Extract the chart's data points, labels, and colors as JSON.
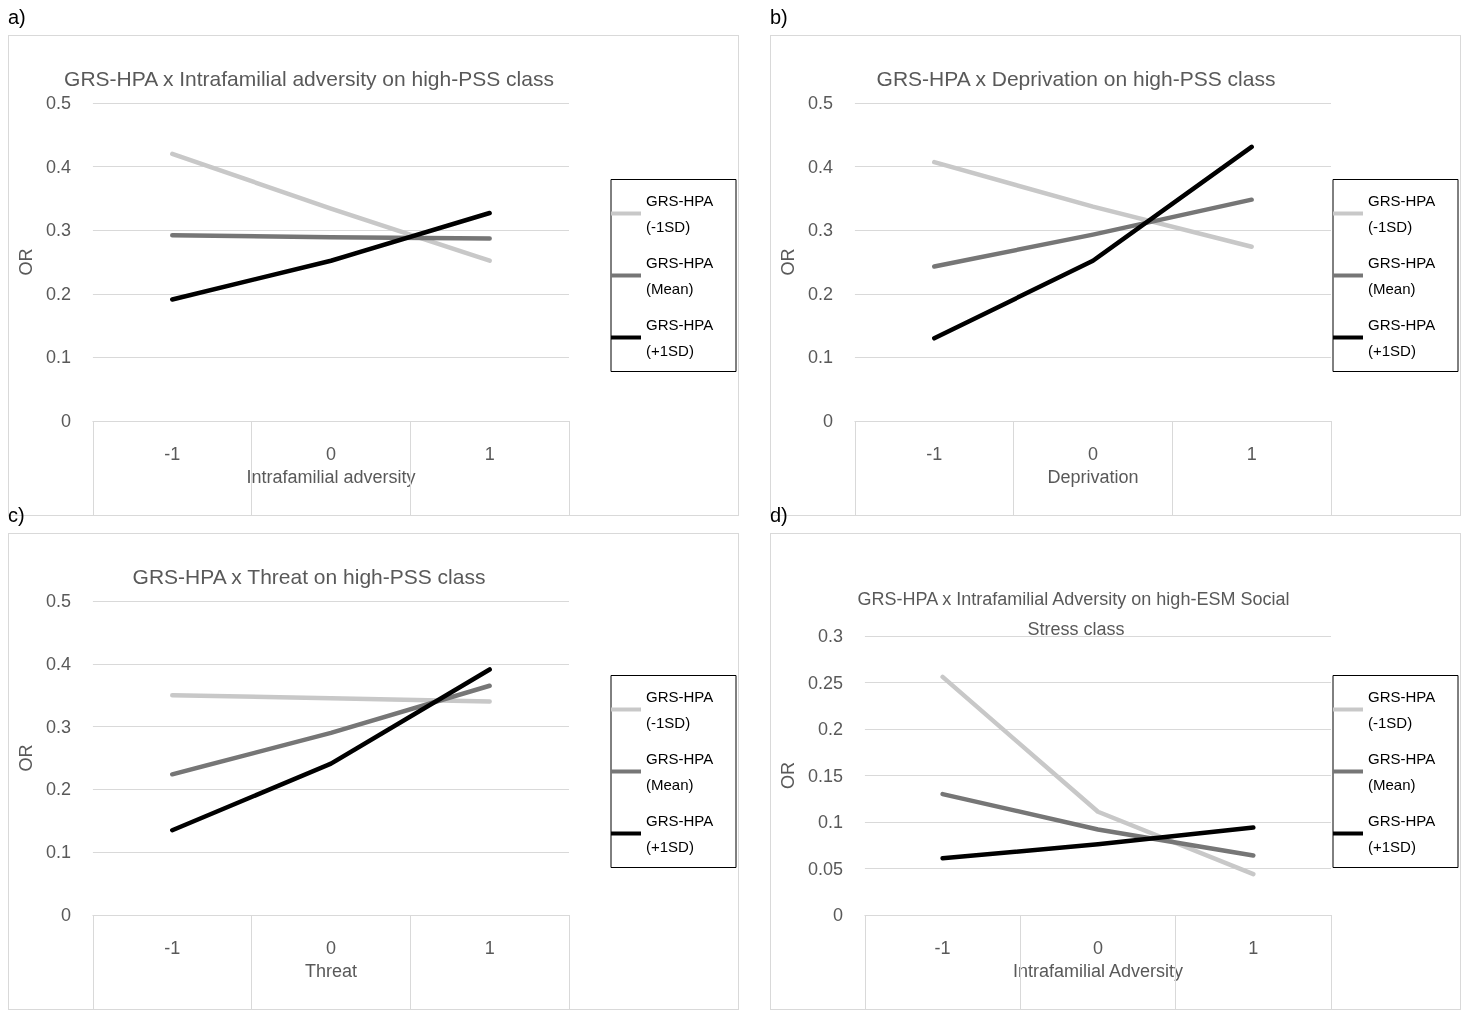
{
  "chart_data": [
    {
      "type": "line",
      "title": "GRS-HPA x Intrafamilial adversity on high-PSS class",
      "xlabel": "Intrafamilial adversity",
      "ylabel": "OR",
      "annotations": [
        "a)"
      ],
      "categories": [
        "-1",
        "0",
        "1"
      ],
      "ylim": [
        0,
        0.5
      ],
      "yticks": [
        0,
        0.1,
        0.2,
        0.3,
        0.4,
        0.5
      ],
      "grid": "y",
      "legend": "right",
      "line_style": "solid",
      "series": [
        {
          "name": "GRS-HPA (-1SD)",
          "color": "#c8c8c8",
          "values": [
            0.42,
            0.334,
            0.252
          ]
        },
        {
          "name": "GRS-HPA (Mean)",
          "color": "#767676",
          "values": [
            0.292,
            0.289,
            0.287
          ]
        },
        {
          "name": "GRS-HPA (+1SD)",
          "color": "#000000",
          "values": [
            0.191,
            0.252,
            0.327
          ]
        }
      ]
    },
    {
      "type": "line",
      "title": "GRS-HPA x Deprivation on high-PSS class",
      "xlabel": "Deprivation",
      "ylabel": "OR",
      "annotations": [
        "b)"
      ],
      "categories": [
        "-1",
        "0",
        "1"
      ],
      "ylim": [
        0,
        0.5
      ],
      "yticks": [
        0,
        0.1,
        0.2,
        0.3,
        0.4,
        0.5
      ],
      "grid": "y",
      "legend": "right",
      "line_style": "solid",
      "series": [
        {
          "name": "GRS-HPA (-1SD)",
          "color": "#c8c8c8",
          "values": [
            0.407,
            0.337,
            0.274
          ]
        },
        {
          "name": "GRS-HPA (Mean)",
          "color": "#767676",
          "values": [
            0.243,
            0.293,
            0.348
          ]
        },
        {
          "name": "GRS-HPA (+1SD)",
          "color": "#000000",
          "values": [
            0.13,
            0.252,
            0.431
          ]
        }
      ]
    },
    {
      "type": "line",
      "title": "GRS-HPA x Threat on high-PSS class",
      "xlabel": "Threat",
      "ylabel": "OR",
      "annotations": [
        "c)"
      ],
      "categories": [
        "-1",
        "0",
        "1"
      ],
      "ylim": [
        0,
        0.5
      ],
      "yticks": [
        0,
        0.1,
        0.2,
        0.3,
        0.4,
        0.5
      ],
      "grid": "y",
      "legend": "right",
      "line_style": "solid",
      "series": [
        {
          "name": "GRS-HPA (-1SD)",
          "color": "#c8c8c8",
          "values": [
            0.35,
            0.345,
            0.34
          ]
        },
        {
          "name": "GRS-HPA (Mean)",
          "color": "#767676",
          "values": [
            0.224,
            0.29,
            0.365
          ]
        },
        {
          "name": "GRS-HPA (+1SD)",
          "color": "#000000",
          "values": [
            0.135,
            0.241,
            0.391
          ]
        }
      ]
    },
    {
      "type": "line",
      "title": "GRS-HPA x Intrafamilial Adversity on high-ESM Social Stress class",
      "xlabel": "Intrafamilial Adversity",
      "ylabel": "OR",
      "annotations": [
        "d)"
      ],
      "categories": [
        "-1",
        "0",
        "1"
      ],
      "ylim": [
        0,
        0.3
      ],
      "yticks": [
        0,
        0.05,
        0.1,
        0.15,
        0.2,
        0.25,
        0.3
      ],
      "grid": "y",
      "legend": "right",
      "line_style": "solid",
      "series": [
        {
          "name": "GRS-HPA (-1SD)",
          "color": "#c8c8c8",
          "values": [
            0.256,
            0.111,
            0.044
          ]
        },
        {
          "name": "GRS-HPA (Mean)",
          "color": "#767676",
          "values": [
            0.13,
            0.092,
            0.064
          ]
        },
        {
          "name": "GRS-HPA (+1SD)",
          "color": "#000000",
          "values": [
            0.061,
            0.076,
            0.094
          ]
        }
      ]
    }
  ]
}
